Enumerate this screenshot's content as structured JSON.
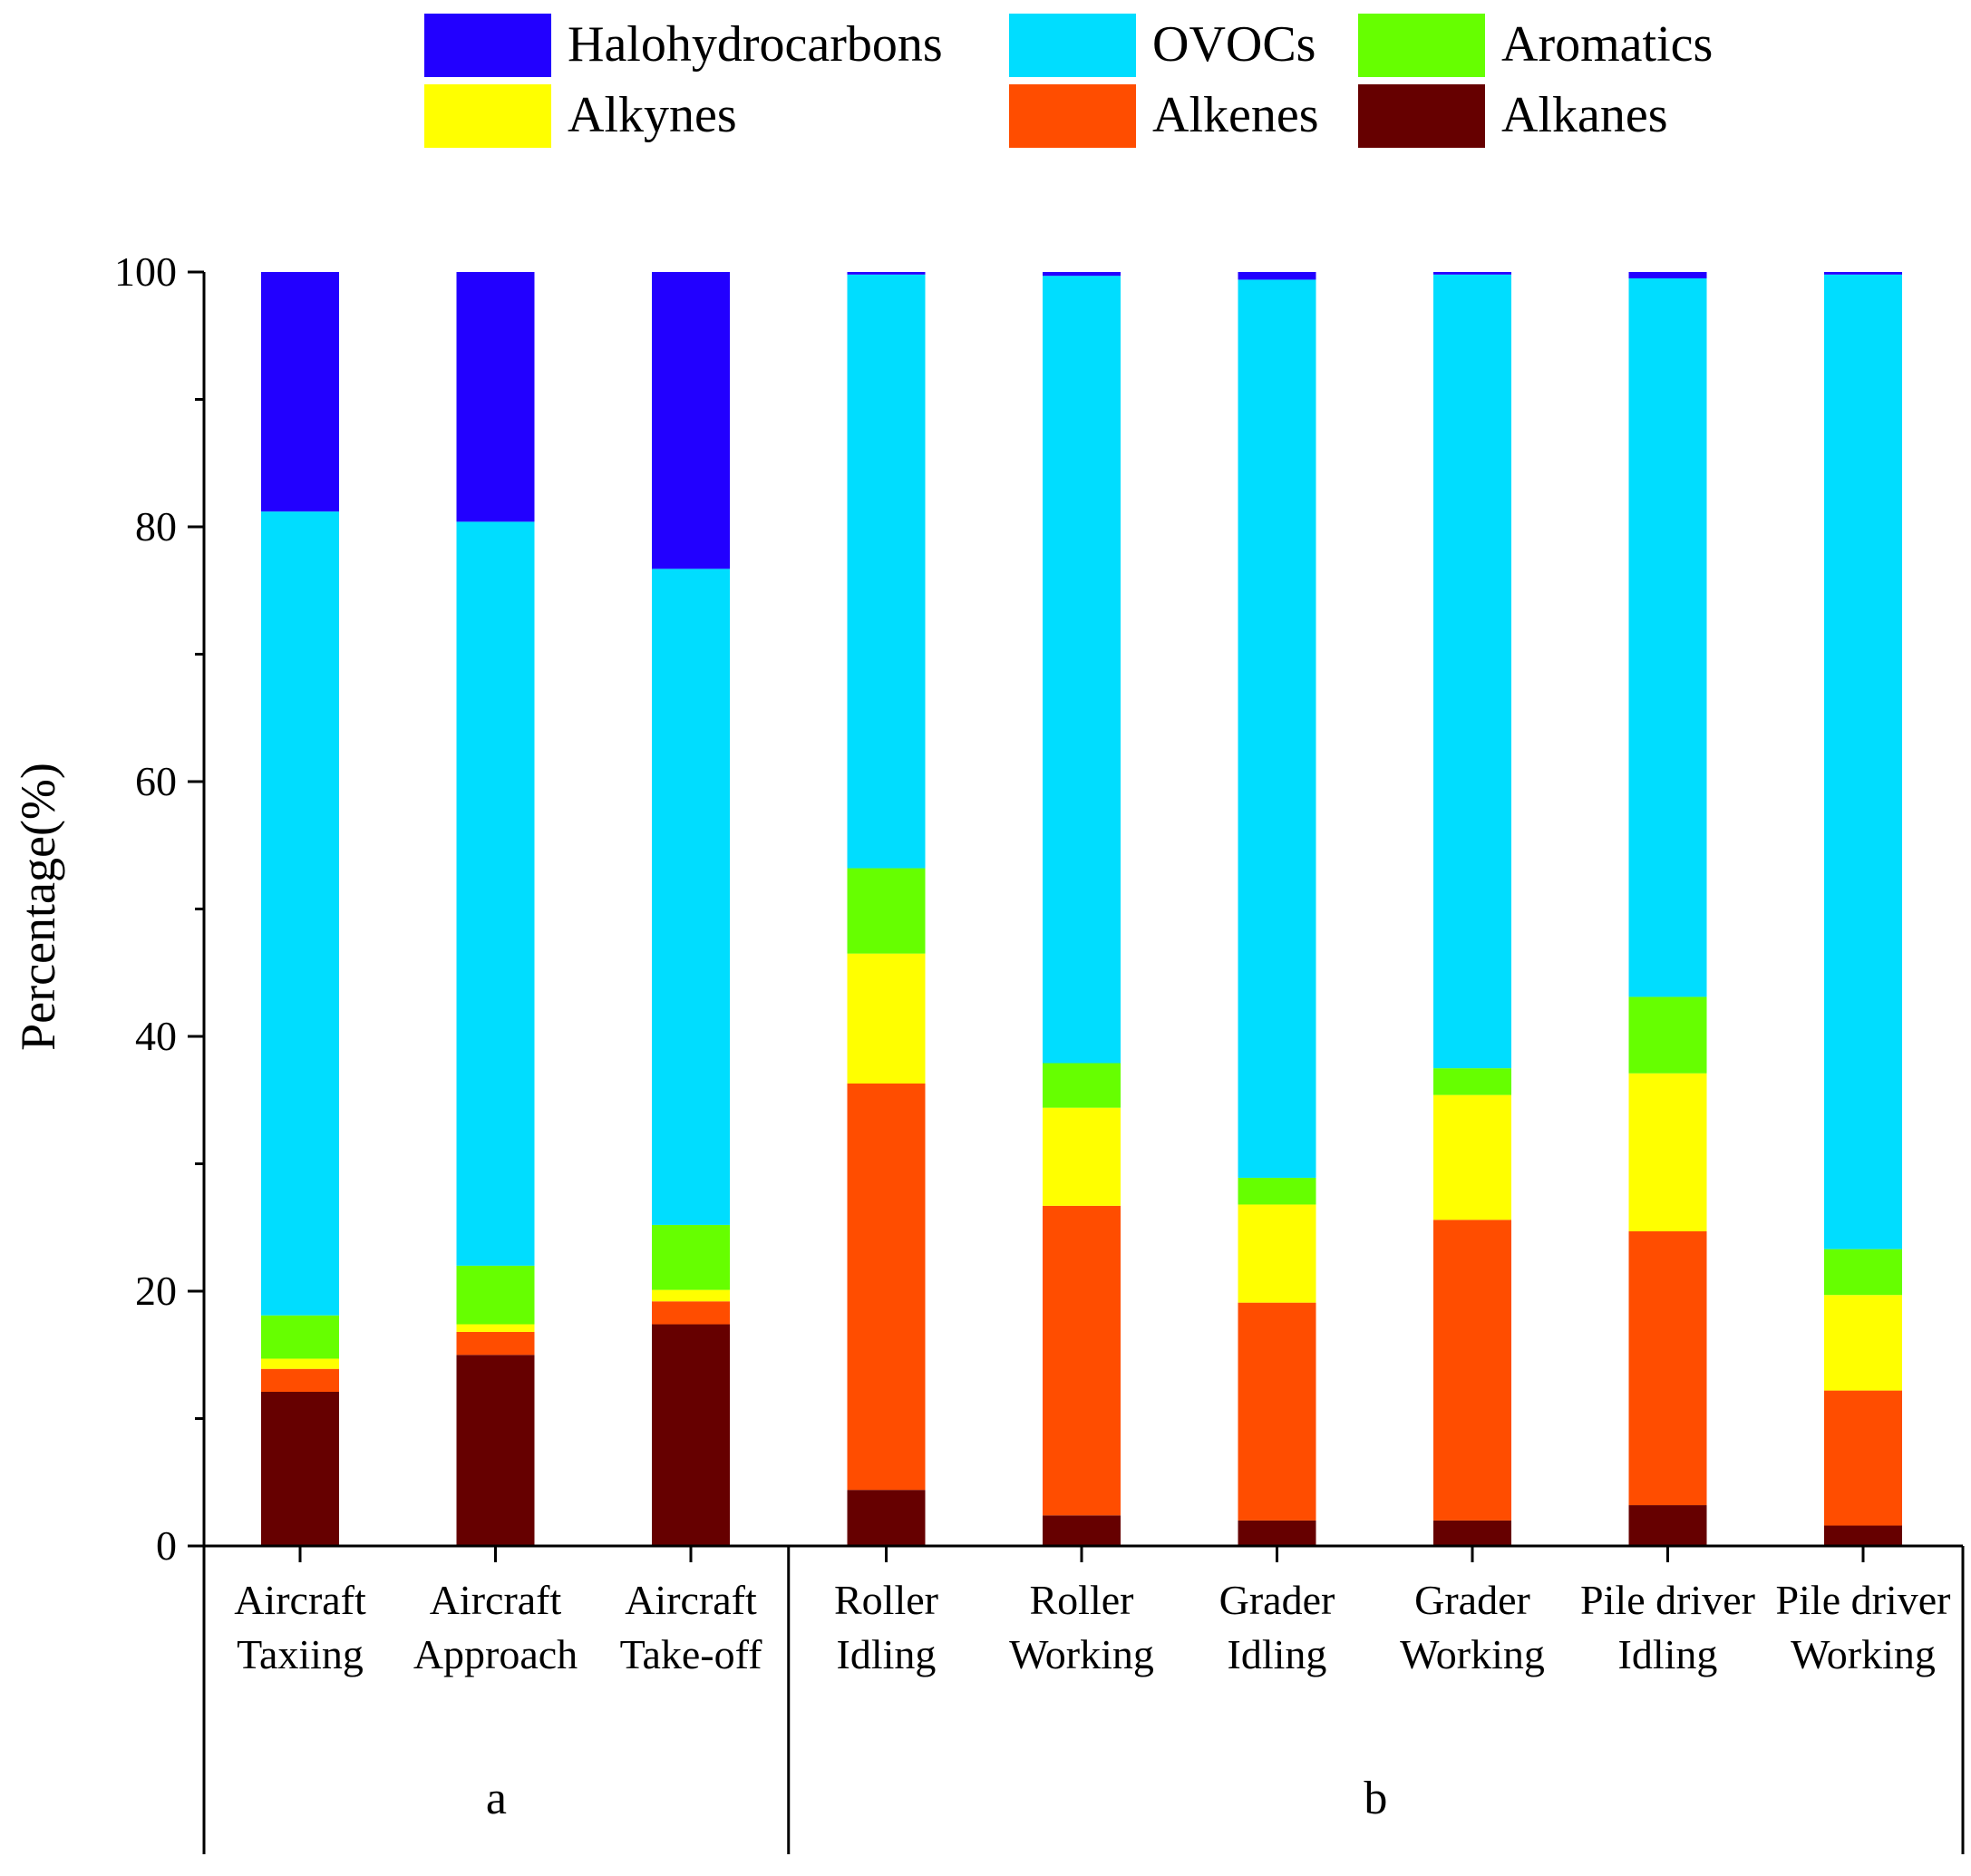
{
  "chart_data": {
    "type": "bar",
    "stacked": true,
    "title": "",
    "xlabel": "",
    "ylabel": "Percentage(%)",
    "ylim": [
      0,
      100
    ],
    "yticks": [
      0,
      20,
      40,
      60,
      80,
      100
    ],
    "grid": false,
    "legend_position": "top",
    "categories": [
      [
        "Aircraft",
        "Taxiing"
      ],
      [
        "Aircraft",
        "Approach"
      ],
      [
        "Aircraft",
        "Take-off"
      ],
      [
        "Roller",
        "Idling"
      ],
      [
        "Roller",
        "Working"
      ],
      [
        "Grader",
        "Idling"
      ],
      [
        "Grader",
        "Working"
      ],
      [
        "Pile driver",
        "Idling"
      ],
      [
        "Pile driver",
        "Working"
      ]
    ],
    "groups": [
      {
        "label": "a",
        "from": 0,
        "to": 2
      },
      {
        "label": "b",
        "from": 3,
        "to": 8
      }
    ],
    "series": [
      {
        "name": "Alkanes",
        "color": "#660000",
        "values": [
          12.1,
          15.0,
          17.4,
          4.4,
          2.4,
          2.0,
          2.0,
          3.2,
          1.6
        ]
      },
      {
        "name": "Alkenes",
        "color": "#FF4D00",
        "values": [
          1.8,
          1.8,
          1.8,
          31.9,
          24.3,
          17.1,
          23.6,
          21.5,
          10.6
        ]
      },
      {
        "name": "Alkynes",
        "color": "#FFFF00",
        "values": [
          0.8,
          0.6,
          0.9,
          10.2,
          7.7,
          7.7,
          9.8,
          12.4,
          7.5
        ]
      },
      {
        "name": "Aromatics",
        "color": "#66FF00",
        "values": [
          3.4,
          4.6,
          5.1,
          6.7,
          3.5,
          2.1,
          2.1,
          6.0,
          3.6
        ]
      },
      {
        "name": "OVOCs",
        "color": "#00DDFF",
        "values": [
          63.1,
          58.4,
          51.5,
          46.6,
          61.8,
          70.5,
          62.3,
          56.4,
          76.5
        ]
      },
      {
        "name": "Halohydrocarbons",
        "color": "#2200FF",
        "values": [
          18.8,
          19.6,
          23.3,
          0.2,
          0.3,
          0.6,
          0.2,
          0.5,
          0.2
        ]
      }
    ],
    "legend_order": [
      "Halohydrocarbons",
      "OVOCs",
      "Aromatics",
      "Alkynes",
      "Alkenes",
      "Alkanes"
    ]
  }
}
